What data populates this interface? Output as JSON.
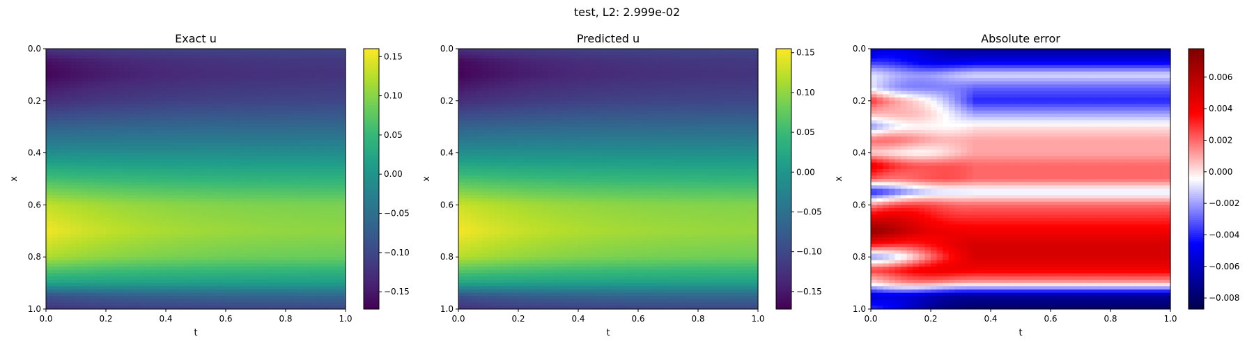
{
  "suptitle": "test, L2: 2.999e-02",
  "colors": {
    "viridis": [
      "#440154",
      "#482878",
      "#3e4989",
      "#31688e",
      "#26828e",
      "#1f9e89",
      "#35b779",
      "#6ece58",
      "#b5de2b",
      "#fde725"
    ],
    "seismic": [
      "#00004c",
      "#0000ff",
      "#ffffff",
      "#ff0000",
      "#7f0000"
    ]
  },
  "chart_data": [
    {
      "type": "heatmap",
      "title": "Exact u",
      "xlabel": "t",
      "ylabel": "x",
      "xlim": [
        0.0,
        1.0
      ],
      "ylim": [
        1.0,
        0.0
      ],
      "xticks": [
        "0.0",
        "0.2",
        "0.4",
        "0.6",
        "0.8",
        "1.0"
      ],
      "yticks": [
        "0.0",
        "0.2",
        "0.4",
        "0.6",
        "0.8",
        "1.0"
      ],
      "colormap": "viridis",
      "colorbar": {
        "range": [
          -0.172,
          0.16
        ],
        "ticks": [
          "-0.15",
          "-0.10",
          "-0.05",
          "0.00",
          "0.05",
          "0.10",
          "0.15"
        ]
      },
      "profile": {
        "x": [
          0.0,
          0.05,
          0.1,
          0.2,
          0.3,
          0.4,
          0.5,
          0.6,
          0.7,
          0.8,
          0.9,
          0.95,
          1.0
        ],
        "u_at_t0": [
          -0.12,
          -0.16,
          -0.168,
          -0.13,
          -0.07,
          -0.01,
          0.06,
          0.13,
          0.155,
          0.12,
          0.02,
          -0.09,
          -0.12
        ],
        "u_at_t1": [
          -0.1,
          -0.115,
          -0.12,
          -0.1,
          -0.06,
          -0.01,
          0.04,
          0.09,
          0.1,
          0.08,
          0.01,
          -0.06,
          -0.1
        ]
      }
    },
    {
      "type": "heatmap",
      "title": "Predicted u",
      "xlabel": "t",
      "ylabel": "x",
      "xlim": [
        0.0,
        1.0
      ],
      "ylim": [
        1.0,
        0.0
      ],
      "xticks": [
        "0.0",
        "0.2",
        "0.4",
        "0.6",
        "0.8",
        "1.0"
      ],
      "yticks": [
        "0.0",
        "0.2",
        "0.4",
        "0.6",
        "0.8",
        "1.0"
      ],
      "colormap": "viridis",
      "colorbar": {
        "range": [
          -0.172,
          0.155
        ],
        "ticks": [
          "-0.15",
          "-0.10",
          "-0.05",
          "0.00",
          "0.05",
          "0.10",
          "0.15"
        ]
      },
      "profile": {
        "x": [
          0.0,
          0.05,
          0.1,
          0.2,
          0.3,
          0.4,
          0.5,
          0.6,
          0.7,
          0.8,
          0.9,
          0.95,
          1.0
        ],
        "u_at_t0": [
          -0.125,
          -0.165,
          -0.17,
          -0.13,
          -0.07,
          -0.01,
          0.06,
          0.13,
          0.152,
          0.12,
          0.02,
          -0.09,
          -0.125
        ],
        "u_at_t1": [
          -0.1,
          -0.115,
          -0.12,
          -0.1,
          -0.06,
          -0.01,
          0.04,
          0.09,
          0.1,
          0.08,
          0.01,
          -0.06,
          -0.1
        ]
      }
    },
    {
      "type": "heatmap",
      "title": "Absolute error",
      "xlabel": "t",
      "ylabel": "x",
      "xlim": [
        0.0,
        1.0
      ],
      "ylim": [
        1.0,
        0.0
      ],
      "xticks": [
        "0.0",
        "0.2",
        "0.4",
        "0.6",
        "0.8",
        "1.0"
      ],
      "yticks": [
        "0.0",
        "0.2",
        "0.4",
        "0.6",
        "0.8",
        "1.0"
      ],
      "colormap": "seismic",
      "colorbar": {
        "range": [
          -0.0087,
          0.0078
        ],
        "ticks": [
          "-0.008",
          "-0.006",
          "-0.004",
          "-0.002",
          "0.000",
          "0.002",
          "0.004",
          "0.006"
        ]
      },
      "profile": {
        "x": [
          0.0,
          0.05,
          0.1,
          0.15,
          0.2,
          0.25,
          0.3,
          0.35,
          0.4,
          0.45,
          0.5,
          0.55,
          0.6,
          0.65,
          0.7,
          0.75,
          0.8,
          0.85,
          0.9,
          0.95,
          1.0
        ],
        "err_at_t0": [
          -0.006,
          -0.005,
          -0.002,
          -0.001,
          0.004,
          0.002,
          -0.002,
          0.001,
          -0.001,
          0.004,
          0.003,
          -0.003,
          0.002,
          0.004,
          0.006,
          0.003,
          -0.002,
          0.004,
          0.001,
          -0.006,
          -0.005
        ],
        "err_at_t1": [
          -0.007,
          -0.005,
          -0.001,
          -0.003,
          -0.004,
          -0.002,
          0.0,
          0.001,
          0.001,
          0.002,
          0.002,
          -0.001,
          0.002,
          0.003,
          0.004,
          0.005,
          0.005,
          0.004,
          0.001,
          -0.007,
          -0.008
        ]
      }
    }
  ]
}
